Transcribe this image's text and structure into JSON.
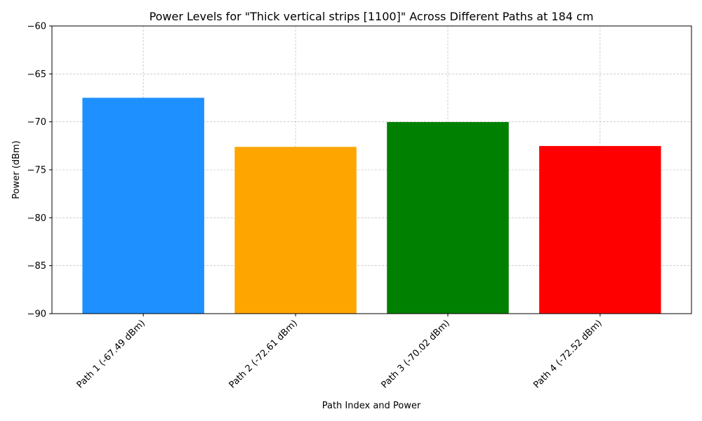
{
  "chart_data": {
    "type": "bar",
    "title": "Power Levels for \"Thick vertical strips [1100]\" Across Different Paths at 184 cm",
    "xlabel": "Path Index and Power",
    "ylabel": "Power (dBm)",
    "categories": [
      "Path 1 (-67.49 dBm)",
      "Path 2 (-72.61 dBm)",
      "Path 3 (-70.02 dBm)",
      "Path 4 (-72.52 dBm)"
    ],
    "values": [
      -67.49,
      -72.61,
      -70.02,
      -72.52
    ],
    "colors": [
      "#1e90ff",
      "#ffa500",
      "#008000",
      "#ff0000"
    ],
    "ylim": [
      -90,
      -60
    ],
    "yticks": [
      -90,
      -85,
      -80,
      -75,
      -70,
      -65,
      -60
    ],
    "ytick_labels": [
      "−90",
      "−85",
      "−80",
      "−75",
      "−70",
      "−65",
      "−60"
    ],
    "grid": true,
    "legend": "none"
  }
}
